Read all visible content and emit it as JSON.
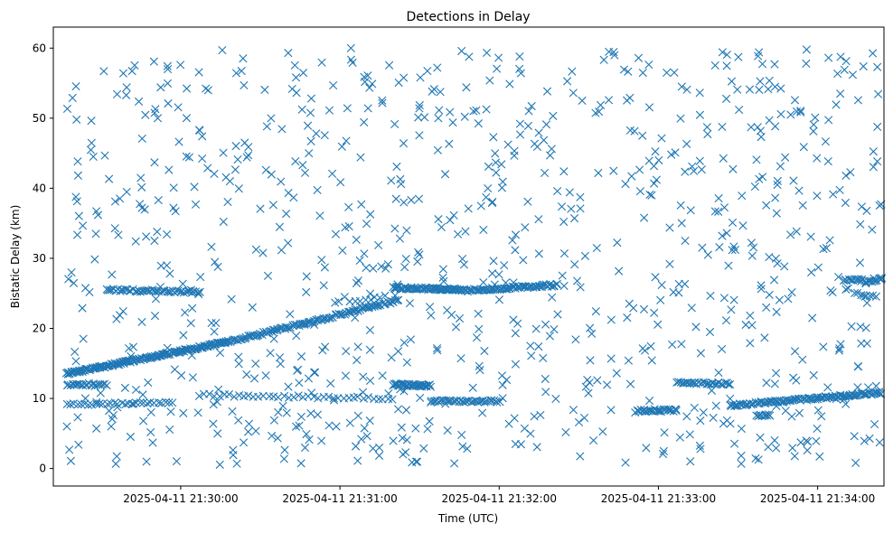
{
  "chart_data": {
    "type": "scatter",
    "title": "Detections in Delay",
    "xlabel": "Time (UTC)",
    "ylabel": "Bistatic Delay (km)",
    "x_axis": {
      "kind": "datetime",
      "range": [
        "2025-04-11 21:29:12",
        "2025-04-11 21:34:25"
      ],
      "ticks": [
        "2025-04-11 21:30:00",
        "2025-04-11 21:31:00",
        "2025-04-11 21:32:00",
        "2025-04-11 21:33:00",
        "2025-04-11 21:34:00"
      ]
    },
    "y_axis": {
      "range": [
        -2.5,
        63
      ],
      "ticks": [
        0,
        10,
        20,
        30,
        40,
        50,
        60
      ]
    },
    "grid": false,
    "marker": "x",
    "series": [
      {
        "color": "#1f77b4",
        "x_unit": "seconds after 21:29:12",
        "tracks": [
          {
            "from": [
              5,
              13.5
            ],
            "to": [
              65,
              18.0
            ],
            "count": 170
          },
          {
            "from": [
              65,
              18.0
            ],
            "to": [
              130,
              24.0
            ],
            "count": 110
          },
          {
            "from": [
              112,
              23.8
            ],
            "to": [
              125,
              24.5
            ],
            "count": 8
          },
          {
            "from": [
              118,
              28.5
            ],
            "to": [
              126,
              29.0
            ],
            "count": 4
          },
          {
            "from": [
              128,
              25.8
            ],
            "to": [
              155,
              25.5
            ],
            "count": 70
          },
          {
            "from": [
              155,
              25.4
            ],
            "to": [
              190,
              26.2
            ],
            "count": 70
          },
          {
            "from": [
              20,
              25.5
            ],
            "to": [
              55,
              25.2
            ],
            "count": 50
          },
          {
            "from": [
              5,
              12.0
            ],
            "to": [
              20,
              12.0
            ],
            "count": 20
          },
          {
            "from": [
              5,
              9.2
            ],
            "to": [
              45,
              9.4
            ],
            "count": 30
          },
          {
            "from": [
              55,
              10.5
            ],
            "to": [
              128,
              10.0
            ],
            "count": 40
          },
          {
            "from": [
              128,
              12.0
            ],
            "to": [
              142,
              11.8
            ],
            "count": 40
          },
          {
            "from": [
              142,
              9.6
            ],
            "to": [
              168,
              9.6
            ],
            "count": 40
          },
          {
            "from": [
              220,
              8.3
            ],
            "to": [
              235,
              8.3
            ],
            "count": 30
          },
          {
            "from": [
              235,
              12.2
            ],
            "to": [
              255,
              12.1
            ],
            "count": 30
          },
          {
            "from": [
              255,
              9.0
            ],
            "to": [
              312,
              10.8
            ],
            "count": 110
          },
          {
            "from": [
              265,
              7.5
            ],
            "to": [
              270,
              7.6
            ],
            "count": 10
          },
          {
            "from": [
              298,
              27.0
            ],
            "to": [
              306,
              26.8
            ],
            "count": 15
          },
          {
            "from": [
              302,
              25.0
            ],
            "to": [
              310,
              24.5
            ],
            "count": 8
          },
          {
            "from": [
              306,
              26.5
            ],
            "to": [
              313,
              27.2
            ],
            "count": 12
          }
        ],
        "noise": {
          "count": 900,
          "x_range": [
            5,
            314
          ],
          "y_range": [
            0.5,
            60
          ]
        }
      }
    ]
  }
}
